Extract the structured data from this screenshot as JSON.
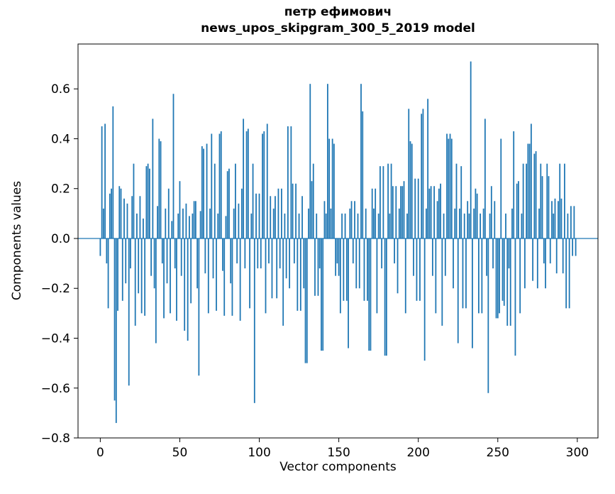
{
  "figure": {
    "title_line1": "петр ефимович",
    "title_line2": "news_upos_skipgram_300_5_2019 model",
    "xlabel": "Vector components",
    "ylabel": "Components values"
  },
  "chart_data": {
    "type": "bar",
    "title": "петр ефимович\nnews_upos_skipgram_300_5_2019 model",
    "xlabel": "Vector components",
    "ylabel": "Components values",
    "bar_color": "#1f77b4",
    "background": "#ffffff",
    "grid": false,
    "legend": null,
    "xlim": [
      -14,
      313
    ],
    "ylim": [
      -0.8,
      0.78
    ],
    "xticks": [
      0,
      50,
      100,
      150,
      200,
      250,
      300
    ],
    "xtick_labels": [
      "0",
      "50",
      "100",
      "150",
      "200",
      "250",
      "300"
    ],
    "yticks": [
      -0.8,
      -0.6,
      -0.4,
      -0.2,
      0.0,
      0.2,
      0.4,
      0.6
    ],
    "ytick_labels": [
      "−0.8",
      "−0.6",
      "−0.4",
      "−0.2",
      "0.0",
      "0.2",
      "0.4",
      "0.6"
    ],
    "values": [
      -0.07,
      0.45,
      0.12,
      0.46,
      -0.1,
      -0.28,
      0.18,
      0.2,
      0.53,
      -0.65,
      -0.74,
      -0.29,
      0.21,
      0.2,
      -0.25,
      0.16,
      -0.18,
      0.14,
      -0.59,
      -0.12,
      0.17,
      0.3,
      -0.35,
      0.1,
      -0.22,
      0.17,
      -0.3,
      0.08,
      -0.31,
      0.29,
      0.3,
      0.28,
      -0.15,
      0.48,
      -0.2,
      -0.42,
      0.13,
      0.4,
      0.39,
      -0.1,
      -0.32,
      0.12,
      -0.18,
      0.2,
      -0.3,
      0.07,
      0.58,
      -0.12,
      -0.33,
      0.1,
      0.23,
      -0.15,
      0.12,
      -0.37,
      0.14,
      -0.41,
      0.09,
      -0.26,
      0.1,
      0.15,
      0.15,
      -0.2,
      -0.55,
      0.11,
      0.37,
      0.36,
      -0.14,
      0.38,
      -0.3,
      0.12,
      0.42,
      -0.16,
      0.3,
      -0.29,
      0.1,
      0.42,
      0.43,
      -0.13,
      -0.31,
      0.09,
      0.27,
      0.28,
      -0.18,
      -0.31,
      0.12,
      0.3,
      -0.1,
      0.14,
      -0.33,
      0.2,
      0.48,
      -0.12,
      0.43,
      0.44,
      -0.28,
      0.1,
      0.3,
      -0.66,
      0.18,
      -0.12,
      0.18,
      -0.12,
      0.42,
      0.43,
      -0.3,
      0.46,
      -0.1,
      0.17,
      -0.24,
      0.12,
      0.17,
      -0.24,
      0.2,
      -0.12,
      0.2,
      -0.35,
      0.1,
      -0.16,
      0.45,
      -0.2,
      0.45,
      0.22,
      -0.1,
      0.22,
      -0.29,
      0.1,
      -0.29,
      0.17,
      -0.2,
      -0.5,
      -0.5,
      0.12,
      0.62,
      0.23,
      0.3,
      -0.23,
      0.1,
      -0.23,
      -0.12,
      -0.45,
      -0.45,
      0.15,
      0.1,
      0.62,
      0.4,
      0.12,
      0.4,
      0.38,
      -0.15,
      -0.1,
      -0.15,
      -0.3,
      0.1,
      -0.25,
      0.1,
      -0.25,
      -0.44,
      0.12,
      0.15,
      -0.1,
      0.15,
      -0.2,
      0.1,
      -0.2,
      0.62,
      0.51,
      -0.25,
      0.12,
      -0.25,
      -0.45,
      -0.45,
      0.2,
      0.12,
      0.2,
      -0.3,
      0.1,
      0.29,
      -0.12,
      0.29,
      -0.47,
      -0.47,
      0.3,
      0.1,
      0.3,
      0.21,
      -0.1,
      0.21,
      -0.22,
      0.12,
      0.21,
      0.21,
      0.23,
      -0.3,
      0.1,
      0.52,
      0.39,
      0.38,
      -0.15,
      0.24,
      -0.25,
      0.24,
      -0.25,
      0.5,
      0.52,
      -0.49,
      0.12,
      0.56,
      0.2,
      0.21,
      -0.15,
      0.21,
      -0.3,
      0.15,
      0.2,
      0.22,
      -0.35,
      0.1,
      -0.15,
      0.42,
      0.4,
      0.42,
      0.4,
      -0.2,
      0.12,
      0.3,
      -0.42,
      0.12,
      0.29,
      -0.28,
      0.1,
      -0.28,
      0.15,
      0.1,
      0.71,
      -0.44,
      0.12,
      0.2,
      0.18,
      -0.3,
      0.1,
      -0.3,
      0.12,
      0.48,
      -0.15,
      -0.62,
      0.1,
      0.21,
      -0.12,
      0.15,
      -0.32,
      -0.32,
      -0.3,
      0.4,
      -0.25,
      -0.27,
      0.1,
      -0.35,
      -0.12,
      -0.35,
      0.12,
      0.43,
      -0.47,
      0.22,
      0.23,
      -0.3,
      0.1,
      0.3,
      -0.2,
      0.3,
      0.38,
      0.38,
      0.46,
      -0.17,
      0.34,
      0.35,
      -0.2,
      0.12,
      0.3,
      0.25,
      -0.1,
      -0.2,
      0.3,
      0.25,
      -0.1,
      0.15,
      0.1,
      0.16,
      -0.14,
      0.15,
      0.3,
      0.16,
      -0.14,
      0.3,
      -0.28,
      0.1,
      -0.28,
      0.13,
      -0.07,
      0.13,
      -0.07
    ]
  }
}
